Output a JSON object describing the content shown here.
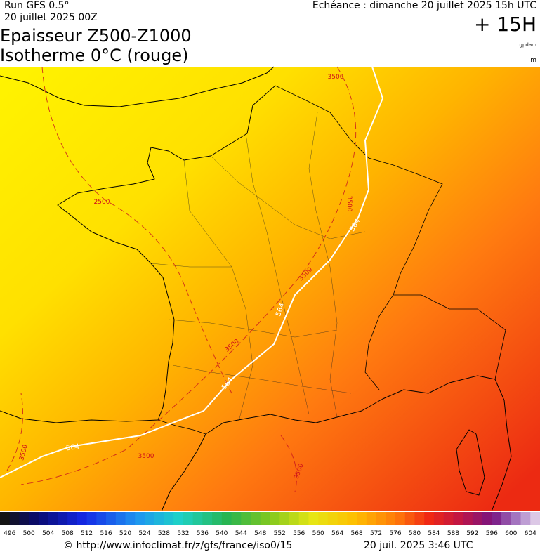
{
  "header": {
    "run": "Run GFS 0.5°",
    "run_date": "20 juillet 2025 00Z",
    "echeance": "Echéance : dimanche 20 juillet 2025 15h UTC",
    "lead": "+ 15H",
    "title_1": "Epaisseur Z500-Z1000",
    "title_2": "Isotherme 0°C (rouge)",
    "unit_1": "gpdam",
    "unit_2": "m"
  },
  "map": {
    "contour_labels": [
      "3500",
      "2500",
      "3500",
      "3500",
      "3500",
      "3500",
      "3500",
      "3500",
      "564",
      "564",
      "564",
      "564"
    ]
  },
  "colorbar": {
    "labels": [
      "496",
      "500",
      "504",
      "508",
      "512",
      "516",
      "520",
      "524",
      "528",
      "532",
      "536",
      "540",
      "544",
      "548",
      "552",
      "556",
      "560",
      "564",
      "568",
      "572",
      "576",
      "580",
      "584",
      "588",
      "592",
      "596",
      "600",
      "604"
    ]
  },
  "footer": {
    "url": "© http://www.infoclimat.fr/z/gfs/france/iso0/15",
    "date": "20 juil. 2025  3:46 UTC"
  }
}
